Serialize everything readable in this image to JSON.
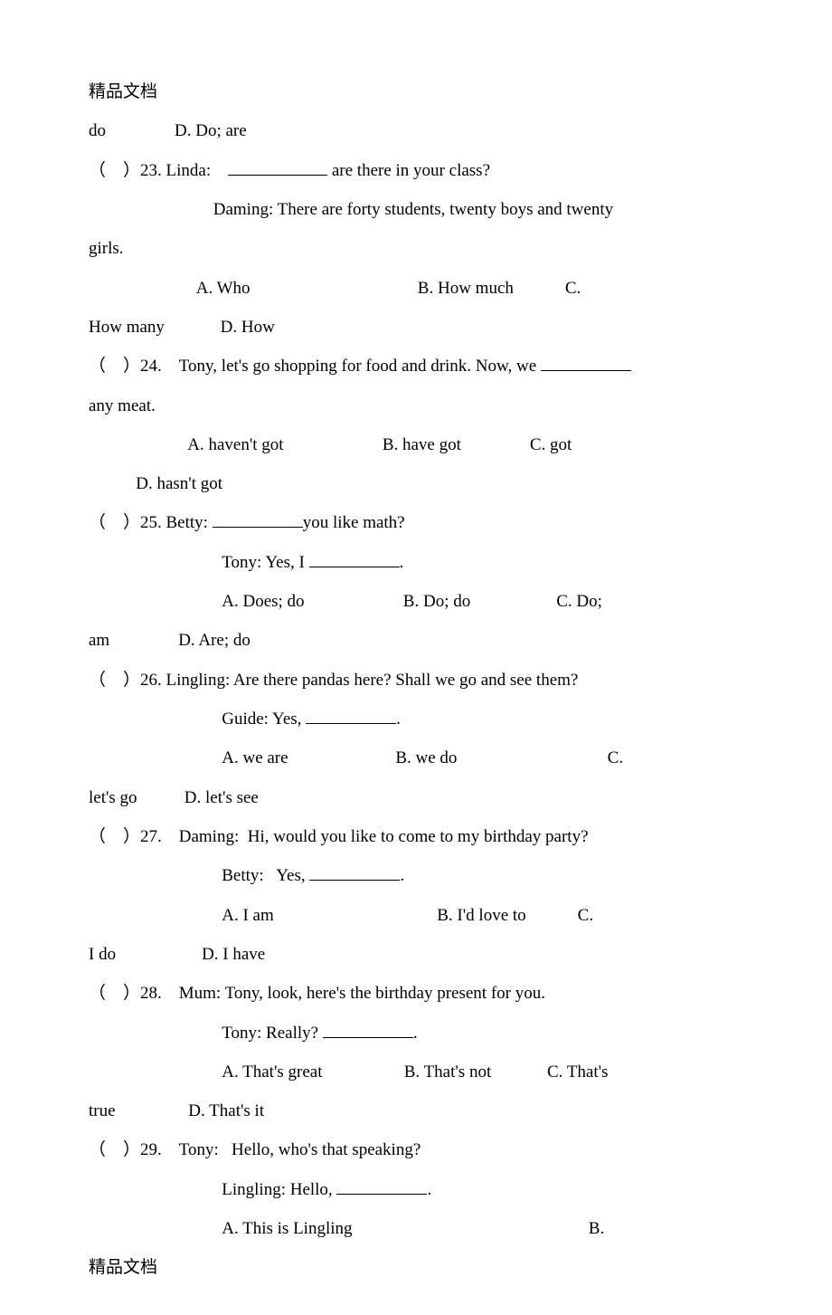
{
  "header": "精品文档",
  "footer": "精品文档",
  "lines": {
    "l1a": "do",
    "l1b": "D. Do; are",
    "q23_a": "（    ）23. Linda:    ",
    "q23_b": " are there in your class?",
    "q23_c": "                             Daming: There are forty students, twenty boys and twenty",
    "q23_d": "girls.",
    "q23_e": "                         A. Who                                       B. How much            C.",
    "q23_f": "How many             D. How",
    "q24_a": "（    ）24.    Tony, let's go shopping for food and drink. Now, we ",
    "q24_b": "any meat.",
    "q24_c": "                       A. haven't got                       B. have got                C. got",
    "q24_d": "           D. hasn't got",
    "q25_a": "（    ）25. Betty: ",
    "q25_b": "you like math?",
    "q25_c": "                               Tony: Yes, I ",
    "q25_d": ".",
    "q25_e": "                               A. Does; do                       B. Do; do                    C. Do;",
    "q25_f": "am                D. Are; do",
    "q26_a": "（    ）26. Lingling: Are there pandas here? Shall we go and see them?",
    "q26_b": "                               Guide: Yes, ",
    "q26_c": ".",
    "q26_d": "                               A. we are                         B. we do                                   C.",
    "q26_e": "let's go           D. let's see",
    "q27_a": "（    ）27.    Daming:  Hi, would you like to come to my birthday party?",
    "q27_b": "                               Betty:   Yes, ",
    "q27_c": ".",
    "q27_d": "                               A. I am                                      B. I'd love to            C.",
    "q27_e": "I do                    D. I have",
    "q28_a": "（    ）28.    Mum: Tony, look, here's the birthday present for you.",
    "q28_b": "                               Tony: Really? ",
    "q28_c": ".",
    "q28_d": "                               A. That's great                   B. That's not             C. That's",
    "q28_e": "true                 D. That's it",
    "q29_a": "（    ）29.    Tony:   Hello, who's that speaking?",
    "q29_b": "                               Lingling: Hello, ",
    "q29_c": ".",
    "q29_d": "                               A. This is Lingling                                                       B."
  }
}
